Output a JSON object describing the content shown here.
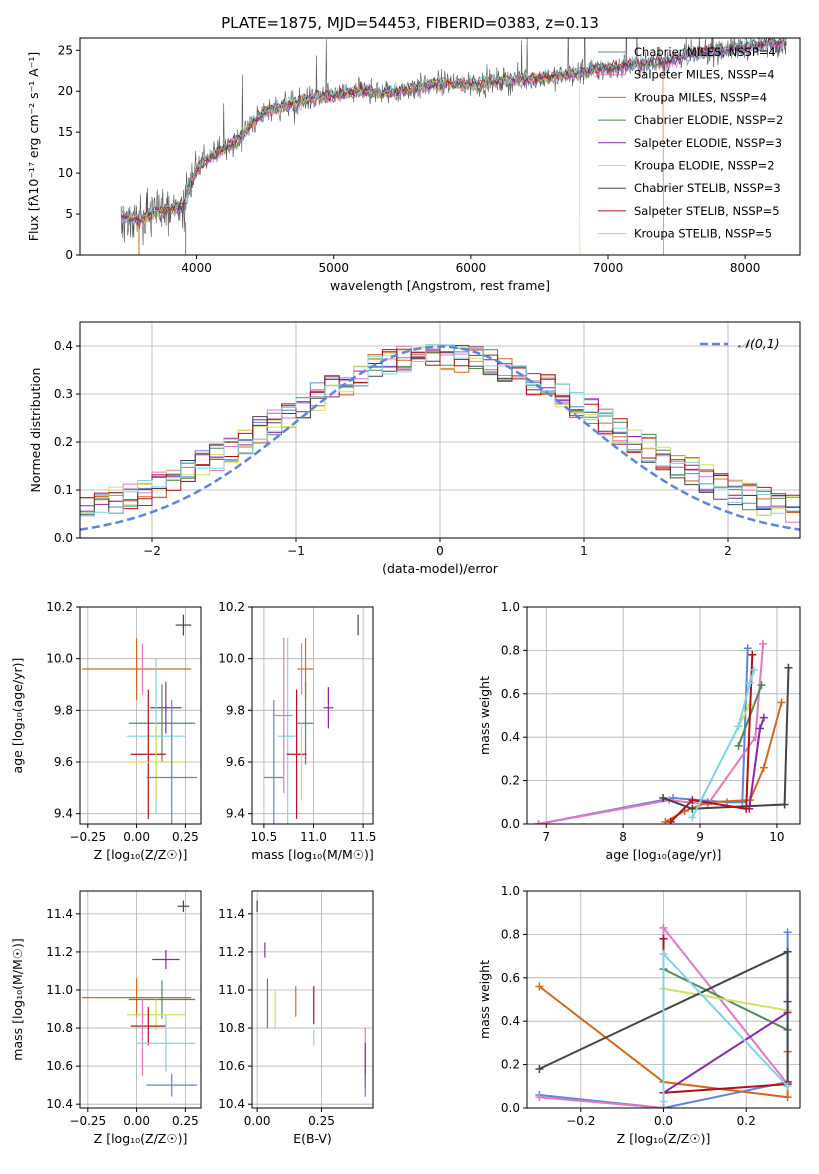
{
  "chart_data": [
    {
      "type": "line",
      "title": "PLATE=1875, MJD=54453, FIBERID=0383, z=0.13",
      "xlabel": "wavelength [Angstrom, rest frame]",
      "ylabel": "Flux [fλ10⁻¹⁷ erg cm⁻² s⁻¹ A⁻¹]",
      "xlim": [
        3150,
        8400
      ],
      "ylim": [
        0,
        26.5
      ],
      "xticks": [
        "4000",
        "5000",
        "6000",
        "7000",
        "8000"
      ],
      "yticks": [
        "0",
        "5",
        "10",
        "15",
        "20",
        "25"
      ],
      "legend_position": "top-right",
      "series": [
        {
          "name": "Chabrier MILES, NSSP=4",
          "color": "#5b86db"
        },
        {
          "name": "Salpeter MILES, NSSP=4",
          "color": "#e377c2"
        },
        {
          "name": "Kroupa MILES, NSSP=4",
          "color": "#d4691e"
        },
        {
          "name": "Chabrier ELODIE, NSSP=2",
          "color": "#4f8b55"
        },
        {
          "name": "Salpeter ELODIE, NSSP=3",
          "color": "#8e24aa"
        },
        {
          "name": "Kroupa ELODIE, NSSP=2",
          "color": "#d2e060"
        },
        {
          "name": "Chabrier STELIB, NSSP=3",
          "color": "#444444"
        },
        {
          "name": "Salpeter STELIB, NSSP=5",
          "color": "#b0121b"
        },
        {
          "name": "Kroupa STELIB, NSSP=5",
          "color": "#80d4e0"
        }
      ],
      "spectrum_continuum": {
        "x": [
          3450,
          3600,
          3700,
          3800,
          3900,
          4000,
          4100,
          4200,
          4300,
          4400,
          4500,
          4600,
          4800,
          5000,
          5200,
          5400,
          5600,
          5800,
          6000,
          6200,
          6400,
          6600,
          6800,
          7000,
          7200,
          7400,
          7600,
          7800,
          8000,
          8200,
          8300
        ],
        "y": [
          4.8,
          4.4,
          5.2,
          5.6,
          6.0,
          10.5,
          12.0,
          13.0,
          14.0,
          16.0,
          17.5,
          18.0,
          19.0,
          19.5,
          20.0,
          19.8,
          20.4,
          21.0,
          20.8,
          21.2,
          21.5,
          21.8,
          22.3,
          22.8,
          23.3,
          23.6,
          24.5,
          25.0,
          25.4,
          25.8,
          26.0
        ]
      }
    },
    {
      "type": "histogram",
      "xlabel": "(data-model)/error",
      "ylabel": "Normed distribution",
      "xlim": [
        -2.5,
        2.5
      ],
      "ylim": [
        0,
        0.45
      ],
      "xticks": [
        "−2",
        "−1",
        "0",
        "1",
        "2"
      ],
      "yticks": [
        "0.0",
        "0.1",
        "0.2",
        "0.3",
        "0.4"
      ],
      "legend_position": "top-right",
      "legend_label": "𝒩(0,1)",
      "reference_curve": {
        "name": "𝒩(0,1)",
        "mu": 0,
        "sigma": 1,
        "color": "#5b86db"
      },
      "bins": {
        "start": -2.5,
        "width": 0.1,
        "count": 50
      }
    },
    {
      "type": "scatter",
      "xlabel": "Z [log₁₀(Z/Z☉)]",
      "ylabel": "age  [log₁₀(age/yr)]",
      "xlim": [
        -0.29,
        0.33
      ],
      "ylim": [
        9.36,
        10.2
      ],
      "xticks": [
        "−0.25",
        "0.00",
        "0.25"
      ],
      "yticks": [
        "9.4",
        "9.6",
        "9.8",
        "10.0",
        "10.2"
      ],
      "points": [
        {
          "x": 0.24,
          "y": 10.13,
          "xerr": 0.04,
          "yerr": 0.04,
          "color": "#444444"
        },
        {
          "x": 0.0,
          "y": 9.96,
          "xerr": 0.28,
          "yerr": 0.12,
          "color": "#d4691e"
        },
        {
          "x": 0.03,
          "y": 9.96,
          "xerr": 0.0,
          "yerr": 0.1,
          "color": "#e377c2"
        },
        {
          "x": 0.15,
          "y": 9.81,
          "xerr": 0.08,
          "yerr": 0.1,
          "color": "#8e24aa"
        },
        {
          "x": 0.13,
          "y": 9.75,
          "xerr": 0.17,
          "yerr": 0.15,
          "color": "#4f8b55"
        },
        {
          "x": 0.1,
          "y": 9.7,
          "xerr": 0.15,
          "yerr": 0.3,
          "color": "#80d4e0"
        },
        {
          "x": 0.06,
          "y": 9.63,
          "xerr": 0.09,
          "yerr": 0.25,
          "color": "#b0121b"
        },
        {
          "x": 0.1,
          "y": 9.6,
          "xerr": 0.15,
          "yerr": 0.15,
          "color": "#d2e060"
        },
        {
          "x": 0.18,
          "y": 9.54,
          "xerr": 0.13,
          "yerr": 0.3,
          "color": "#5b86db"
        }
      ]
    },
    {
      "type": "scatter",
      "xlabel": "mass [log₁₀(M/M☉)]",
      "ylabel": "",
      "xlim": [
        10.38,
        11.6
      ],
      "ylim": [
        9.36,
        10.2
      ],
      "xticks": [
        "10.5",
        "11.0",
        "11.5"
      ],
      "yticks": [
        "9.4",
        "9.6",
        "9.8",
        "10.0",
        "10.2"
      ],
      "points": [
        {
          "x": 11.45,
          "y": 10.13,
          "xerr": 0.0,
          "yerr": 0.04,
          "color": "#444444"
        },
        {
          "x": 10.92,
          "y": 9.96,
          "xerr": 0.08,
          "yerr": 0.12,
          "color": "#d4691e"
        },
        {
          "x": 10.88,
          "y": 9.96,
          "xerr": 0.0,
          "yerr": 0.1,
          "color": "#e377c2"
        },
        {
          "x": 11.15,
          "y": 9.81,
          "xerr": 0.05,
          "yerr": 0.08,
          "color": "#8e24aa"
        },
        {
          "x": 10.92,
          "y": 9.75,
          "xerr": 0.08,
          "yerr": 0.16,
          "color": "#4f8b55"
        },
        {
          "x": 10.74,
          "y": 9.7,
          "xerr": 0.1,
          "yerr": 0.38,
          "color": "#80d4e0"
        },
        {
          "x": 10.83,
          "y": 9.63,
          "xerr": 0.1,
          "yerr": 0.25,
          "color": "#b0121b"
        },
        {
          "x": 10.88,
          "y": 9.6,
          "xerr": 0.0,
          "yerr": 0.15,
          "color": "#d2e060"
        },
        {
          "x": 10.6,
          "y": 9.54,
          "xerr": 0.1,
          "yerr": 0.3,
          "color": "#5b86db"
        },
        {
          "x": 10.7,
          "y": 9.78,
          "xerr": 0.09,
          "yerr": 0.3,
          "color": "#e377c2"
        }
      ]
    },
    {
      "type": "line",
      "xlabel": "age  [log₁₀(age/yr)]",
      "ylabel": "mass weight",
      "xlim": [
        6.75,
        10.3
      ],
      "ylim": [
        0.0,
        1.0
      ],
      "xticks": [
        "7",
        "8",
        "9",
        "10"
      ],
      "yticks": [
        "0.0",
        "0.2",
        "0.4",
        "0.6",
        "0.8",
        "1.0"
      ],
      "series": [
        {
          "color": "#5b86db",
          "x": [
            6.9,
            8.65,
            9.35,
            9.55,
            9.62
          ],
          "y": [
            0.0,
            0.12,
            0.1,
            0.1,
            0.81
          ]
        },
        {
          "color": "#e377c2",
          "x": [
            6.9,
            8.6,
            9.1,
            9.72,
            9.82
          ],
          "y": [
            0.0,
            0.11,
            0.09,
            0.4,
            0.83
          ]
        },
        {
          "color": "#d4691e",
          "x": [
            8.55,
            8.8,
            9.1,
            9.65,
            9.83,
            10.06
          ],
          "y": [
            0.01,
            0.06,
            0.1,
            0.11,
            0.26,
            0.56
          ]
        },
        {
          "color": "#4f8b55",
          "x": [
            9.5,
            9.8
          ],
          "y": [
            0.36,
            0.64
          ]
        },
        {
          "color": "#8e24aa",
          "x": [
            9.64,
            9.78,
            9.83
          ],
          "y": [
            0.07,
            0.44,
            0.49
          ]
        },
        {
          "color": "#d2e060",
          "x": [
            9.5,
            9.65
          ],
          "y": [
            0.45,
            0.55
          ]
        },
        {
          "color": "#444444",
          "x": [
            8.52,
            8.9,
            10.1,
            10.15
          ],
          "y": [
            0.12,
            0.07,
            0.09,
            0.72
          ]
        },
        {
          "color": "#b0121b",
          "x": [
            8.62,
            8.9,
            9.6,
            9.68
          ],
          "y": [
            0.01,
            0.11,
            0.07,
            0.78
          ]
        },
        {
          "color": "#80d4e0",
          "x": [
            8.9,
            9.5,
            9.65,
            9.7
          ],
          "y": [
            0.03,
            0.45,
            0.65,
            0.71
          ]
        }
      ]
    },
    {
      "type": "scatter",
      "xlabel": "Z [log₁₀(Z/Z☉)]",
      "ylabel": "mass [log₁₀(M/M☉)]",
      "xlim": [
        -0.29,
        0.33
      ],
      "ylim": [
        10.38,
        11.52
      ],
      "xticks": [
        "−0.25",
        "0.00",
        "0.25"
      ],
      "yticks": [
        "10.4",
        "10.6",
        "10.8",
        "11.0",
        "11.2",
        "11.4"
      ],
      "points": [
        {
          "x": 0.24,
          "y": 11.44,
          "xerr": 0.03,
          "yerr": 0.03,
          "color": "#444444"
        },
        {
          "x": 0.15,
          "y": 11.16,
          "xerr": 0.07,
          "yerr": 0.05,
          "color": "#8e24aa"
        },
        {
          "x": 0.0,
          "y": 10.96,
          "xerr": 0.28,
          "yerr": 0.1,
          "color": "#d4691e"
        },
        {
          "x": 0.13,
          "y": 10.95,
          "xerr": 0.17,
          "yerr": 0.1,
          "color": "#4f8b55"
        },
        {
          "x": 0.1,
          "y": 10.87,
          "xerr": 0.15,
          "yerr": 0.08,
          "color": "#d2e060"
        },
        {
          "x": 0.06,
          "y": 10.81,
          "xerr": 0.09,
          "yerr": 0.1,
          "color": "#b0121b"
        },
        {
          "x": 0.03,
          "y": 10.75,
          "xerr": 0.0,
          "yerr": 0.2,
          "color": "#e377c2"
        },
        {
          "x": 0.15,
          "y": 10.72,
          "xerr": 0.15,
          "yerr": 0.15,
          "color": "#80d4e0"
        },
        {
          "x": 0.18,
          "y": 10.5,
          "xerr": 0.13,
          "yerr": 0.06,
          "color": "#5b86db"
        }
      ]
    },
    {
      "type": "scatter",
      "xlabel": "E(B-V)",
      "ylabel": "",
      "xlim": [
        -0.02,
        0.45
      ],
      "ylim": [
        10.38,
        11.52
      ],
      "xticks": [
        "0.00",
        "0.25"
      ],
      "yticks": [
        "10.4",
        "10.6",
        "10.8",
        "11.0",
        "11.2",
        "11.4"
      ],
      "points": [
        {
          "x": 0.0,
          "y": 11.44,
          "yerr": 0.03,
          "color": "#444444"
        },
        {
          "x": 0.03,
          "y": 11.21,
          "yerr": 0.04,
          "color": "#8e24aa"
        },
        {
          "x": 0.04,
          "y": 10.93,
          "yerr": 0.13,
          "color": "#4f8b55"
        },
        {
          "x": 0.07,
          "y": 10.9,
          "yerr": 0.1,
          "color": "#d2e060"
        },
        {
          "x": 0.15,
          "y": 10.94,
          "yerr": 0.08,
          "color": "#d4691e"
        },
        {
          "x": 0.22,
          "y": 10.92,
          "yerr": 0.1,
          "color": "#b0121b"
        },
        {
          "x": 0.22,
          "y": 10.75,
          "yerr": 0.04,
          "color": "#80d4e0"
        },
        {
          "x": 0.42,
          "y": 10.68,
          "yerr": 0.12,
          "color": "#e377c2"
        },
        {
          "x": 0.42,
          "y": 10.6,
          "yerr": 0.12,
          "color": "#8e24aa"
        },
        {
          "x": 0.42,
          "y": 10.5,
          "yerr": 0.06,
          "color": "#5b86db"
        }
      ]
    },
    {
      "type": "line",
      "xlabel": "Z [log₁₀(Z/Z☉)]",
      "ylabel": "mass weight",
      "xlim": [
        -0.33,
        0.33
      ],
      "ylim": [
        0.0,
        1.0
      ],
      "xticks": [
        "−0.2",
        "0.0",
        "0.2"
      ],
      "yticks": [
        "0.0",
        "0.2",
        "0.4",
        "0.6",
        "0.8",
        "1.0"
      ],
      "series": [
        {
          "color": "#5b86db",
          "x": [
            -0.3,
            0.0,
            0.3,
            0.3
          ],
          "y": [
            0.06,
            0.0,
            0.12,
            0.81
          ]
        },
        {
          "color": "#e377c2",
          "x": [
            -0.3,
            0.0,
            0.0,
            0.3
          ],
          "y": [
            0.05,
            0.0,
            0.83,
            0.11
          ]
        },
        {
          "color": "#d4691e",
          "x": [
            -0.3,
            0.0,
            0.3,
            0.3
          ],
          "y": [
            0.56,
            0.12,
            0.05,
            0.26
          ]
        },
        {
          "color": "#4f8b55",
          "x": [
            0.0,
            0.3
          ],
          "y": [
            0.64,
            0.36
          ]
        },
        {
          "color": "#8e24aa",
          "x": [
            0.0,
            0.3,
            0.3
          ],
          "y": [
            0.07,
            0.44,
            0.49
          ]
        },
        {
          "color": "#d2e060",
          "x": [
            0.0,
            0.3
          ],
          "y": [
            0.55,
            0.45
          ]
        },
        {
          "color": "#444444",
          "x": [
            -0.3,
            0.3,
            0.3
          ],
          "y": [
            0.18,
            0.72,
            0.12
          ]
        },
        {
          "color": "#b0121b",
          "x": [
            0.0,
            0.0,
            0.3
          ],
          "y": [
            0.78,
            0.07,
            0.11
          ]
        },
        {
          "color": "#80d4e0",
          "x": [
            0.0,
            0.0,
            0.3
          ],
          "y": [
            0.03,
            0.71,
            0.1
          ]
        }
      ]
    }
  ]
}
